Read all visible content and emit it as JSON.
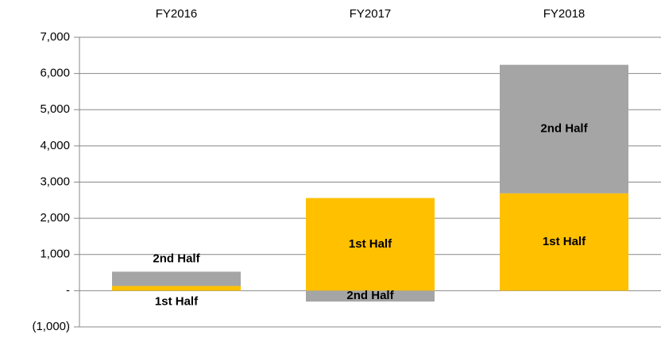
{
  "chart_data": {
    "type": "stacked_bar",
    "categories": [
      "FY2016",
      "FY2017",
      "FY2018"
    ],
    "series": [
      {
        "name": "1st Half",
        "color": "#FFC000",
        "values": [
          130,
          2560,
          2690
        ]
      },
      {
        "name": "2nd Half",
        "color": "#A5A5A5",
        "values": [
          395,
          -300,
          3550
        ]
      }
    ],
    "ylim": [
      -1000,
      7000
    ],
    "yticks": [
      {
        "value": -1000,
        "label": "(1,000)"
      },
      {
        "value": 0,
        "label": "-"
      },
      {
        "value": 1000,
        "label": "1,000"
      },
      {
        "value": 2000,
        "label": "2,000"
      },
      {
        "value": 3000,
        "label": "3,000"
      },
      {
        "value": 4000,
        "label": "4,000"
      },
      {
        "value": 5000,
        "label": "5,000"
      },
      {
        "value": 6000,
        "label": "6,000"
      },
      {
        "value": 7000,
        "label": "7,000"
      }
    ],
    "grid": true
  }
}
